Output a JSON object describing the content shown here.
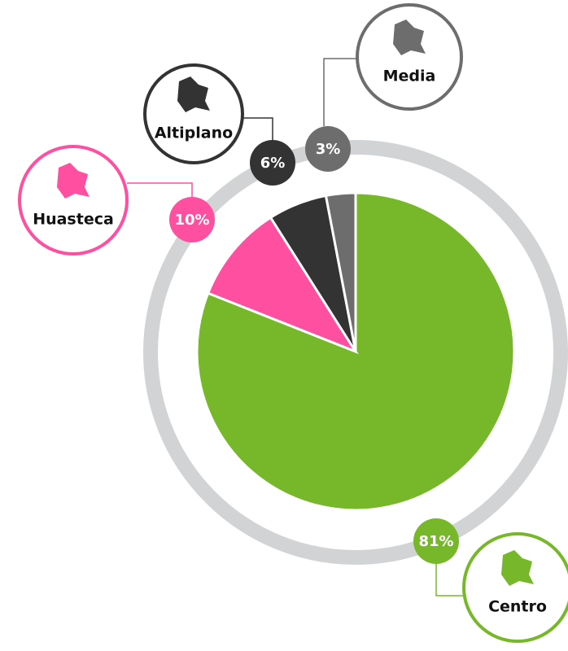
{
  "chart_data": {
    "type": "pie",
    "categories": [
      "Centro",
      "Huasteca",
      "Altiplano",
      "Media"
    ],
    "values": [
      81,
      10,
      6,
      3
    ],
    "value_labels": [
      "81%",
      "10%",
      "6%",
      "3%"
    ],
    "colors": [
      "#76b82a",
      "#ff4fa0",
      "#333333",
      "#6d6d6d"
    ]
  }
}
